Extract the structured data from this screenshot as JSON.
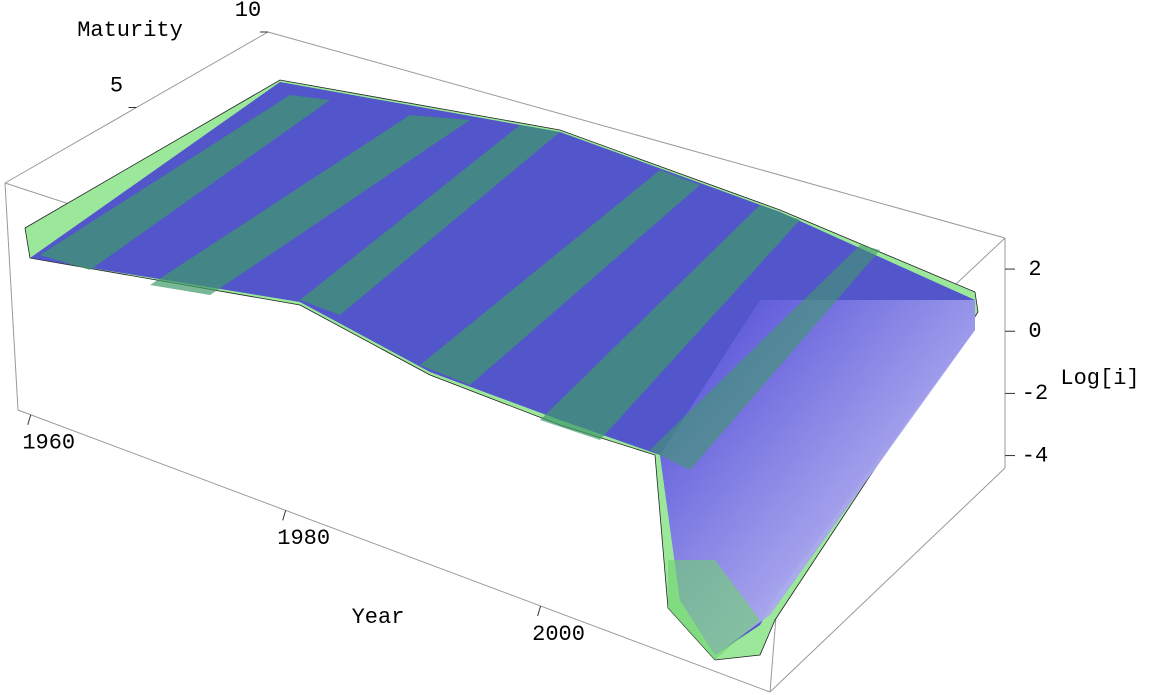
{
  "chart_data": {
    "type": "surface3d",
    "x_label": "Year",
    "y_label": "Maturity",
    "z_label": "Log[i]",
    "xlim": [
      1959,
      2018
    ],
    "xticks": [
      1960,
      1980,
      2000
    ],
    "ylim": [
      0,
      10
    ],
    "yticks": [
      5,
      10
    ],
    "zlim": [
      -4.4,
      3
    ],
    "zticks": [
      2,
      0,
      -2,
      -4
    ]
  }
}
